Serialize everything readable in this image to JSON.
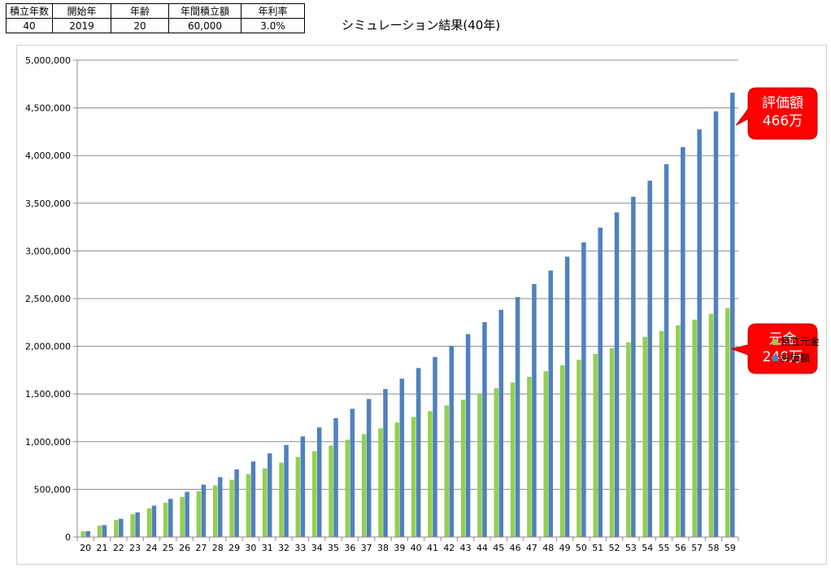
{
  "params_table": {
    "headers": [
      "積立年数",
      "開始年",
      "年齢",
      "年間積立額",
      "年利率"
    ],
    "values": [
      "40",
      "2019",
      "20",
      "60,000",
      "3.0%"
    ]
  },
  "page_title": "シミュレーション結果(40年)",
  "chart_data": {
    "type": "bar",
    "title": "",
    "xlabel": "",
    "ylabel": "",
    "ylim": [
      0,
      5000000
    ],
    "yticks": [
      0,
      500000,
      1000000,
      1500000,
      2000000,
      2500000,
      3000000,
      3500000,
      4000000,
      4500000,
      5000000
    ],
    "ytick_labels": [
      "0",
      "500,000",
      "1,000,000",
      "1,500,000",
      "2,000,000",
      "2,500,000",
      "3,000,000",
      "3,500,000",
      "4,000,000",
      "4,500,000",
      "5,000,000"
    ],
    "grid": true,
    "legend_position": "right",
    "categories": [
      "20",
      "21",
      "22",
      "23",
      "24",
      "25",
      "26",
      "27",
      "28",
      "29",
      "30",
      "31",
      "32",
      "33",
      "34",
      "35",
      "36",
      "37",
      "38",
      "39",
      "40",
      "41",
      "42",
      "43",
      "44",
      "45",
      "46",
      "47",
      "48",
      "49",
      "50",
      "51",
      "52",
      "53",
      "54",
      "55",
      "56",
      "57",
      "58",
      "59"
    ],
    "series": [
      {
        "name": "積立元金",
        "color": "#92d050",
        "values": [
          60000,
          120000,
          180000,
          240000,
          300000,
          360000,
          420000,
          480000,
          540000,
          600000,
          660000,
          720000,
          780000,
          840000,
          900000,
          960000,
          1020000,
          1080000,
          1140000,
          1200000,
          1260000,
          1320000,
          1380000,
          1440000,
          1500000,
          1560000,
          1620000,
          1680000,
          1740000,
          1800000,
          1860000,
          1920000,
          1980000,
          2040000,
          2100000,
          2160000,
          2220000,
          2280000,
          2340000,
          2400000
        ]
      },
      {
        "name": "評価額",
        "color": "#4f81bd",
        "values": [
          61800,
          125454,
          191018,
          258548,
          328105,
          399748,
          473540,
          549546,
          627833,
          708468,
          791522,
          877067,
          965179,
          1055935,
          1149413,
          1245695,
          1344866,
          1447012,
          1552222,
          1660589,
          1772207,
          1887173,
          2005588,
          2127556,
          2253183,
          2382578,
          2515856,
          2653131,
          2794525,
          2940161,
          3090166,
          3244671,
          3403811,
          3567725,
          3736557,
          3910453,
          4089567,
          4274054,
          4464076,
          4659798
        ]
      }
    ],
    "annotations": [
      {
        "lines": [
          "評価額",
          "466万"
        ],
        "color": "#ff0000"
      },
      {
        "lines": [
          "元金",
          "240万"
        ],
        "color": "#ff0000"
      }
    ]
  }
}
